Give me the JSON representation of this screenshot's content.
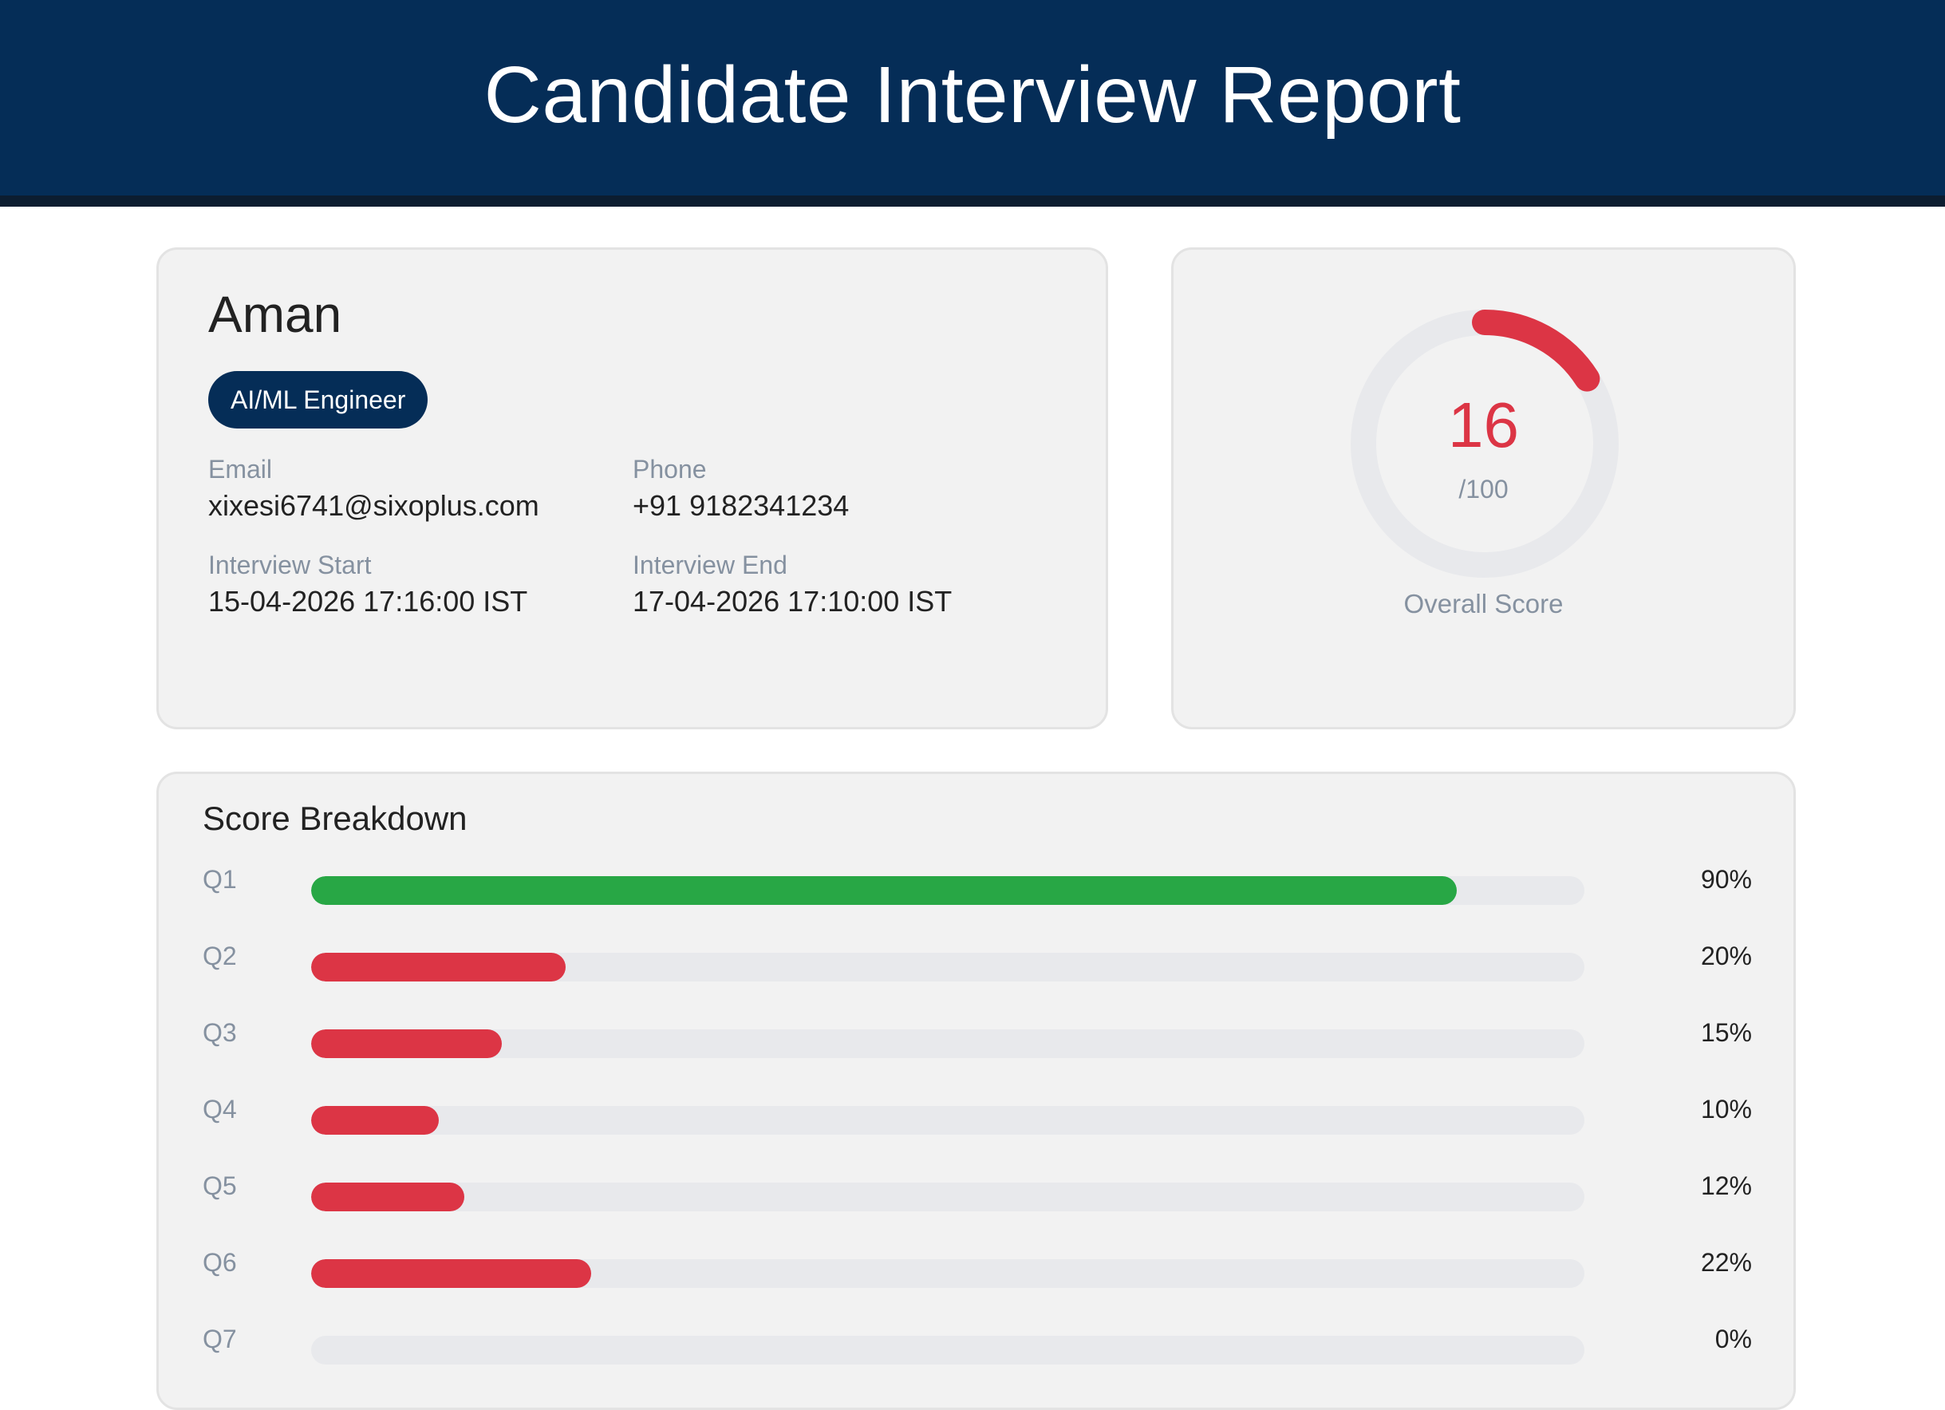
{
  "header": {
    "title": "Candidate Interview Report"
  },
  "candidate": {
    "name": "Aman",
    "role": "AI/ML Engineer",
    "email_label": "Email",
    "email": "xixesi6741@sixoplus.com",
    "phone_label": "Phone",
    "phone": "+91 9182341234",
    "start_label": "Interview Start",
    "start": "15-04-2026 17:16:00 IST",
    "end_label": "Interview End",
    "end": "17-04-2026 17:10:00 IST"
  },
  "score": {
    "value": 16,
    "value_text": "16",
    "max_text": "/100",
    "label": "Overall Score"
  },
  "breakdown": {
    "title": "Score Breakdown",
    "rows": [
      {
        "label": "Q1",
        "percent": 90,
        "percent_text": "90%"
      },
      {
        "label": "Q2",
        "percent": 20,
        "percent_text": "20%"
      },
      {
        "label": "Q3",
        "percent": 15,
        "percent_text": "15%"
      },
      {
        "label": "Q4",
        "percent": 10,
        "percent_text": "10%"
      },
      {
        "label": "Q5",
        "percent": 12,
        "percent_text": "12%"
      },
      {
        "label": "Q6",
        "percent": 22,
        "percent_text": "22%"
      },
      {
        "label": "Q7",
        "percent": 0,
        "percent_text": "0%"
      }
    ]
  },
  "colors": {
    "header_bg": "#052d57",
    "good": "#28a745",
    "bad": "#dc3545",
    "track": "#e8e9ec"
  }
}
